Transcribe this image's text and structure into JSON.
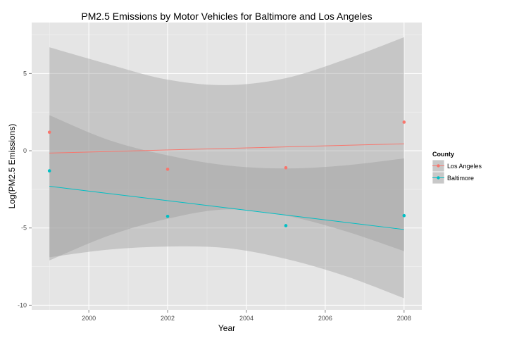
{
  "chart_data": {
    "type": "scatter",
    "title": "PM2.5 Emissions by Motor Vehicles for Baltimore and Los Angeles",
    "xlabel": "Year",
    "ylabel": "Log(PM2.5 Emissions)",
    "xlim": [
      1998.55,
      2008.45
    ],
    "ylim": [
      -10.3,
      8.3
    ],
    "x_ticks": [
      2000,
      2002,
      2004,
      2006,
      2008
    ],
    "y_ticks": [
      -10,
      -5,
      0,
      5
    ],
    "grid": true,
    "legend": {
      "title": "County",
      "position": "right"
    },
    "series": [
      {
        "name": "Los Angeles",
        "color": "#f8766d",
        "points": [
          {
            "x": 1999,
            "y": 1.2
          },
          {
            "x": 2002,
            "y": -1.2
          },
          {
            "x": 2005,
            "y": -1.1
          },
          {
            "x": 2008,
            "y": 1.85
          }
        ],
        "fit": {
          "x": [
            1999,
            2008
          ],
          "y": [
            -0.15,
            0.45
          ]
        },
        "ci_upper": [
          {
            "x": 1999,
            "y": 6.7
          },
          {
            "x": 2000.5,
            "y": 5.6
          },
          {
            "x": 2002,
            "y": 4.6
          },
          {
            "x": 2003.5,
            "y": 4.25
          },
          {
            "x": 2005,
            "y": 4.7
          },
          {
            "x": 2006.5,
            "y": 5.9
          },
          {
            "x": 2008,
            "y": 7.35
          }
        ],
        "ci_lower": [
          {
            "x": 1999,
            "y": -7.1
          },
          {
            "x": 2000.5,
            "y": -5.5
          },
          {
            "x": 2002,
            "y": -4.4
          },
          {
            "x": 2003.5,
            "y": -3.8
          },
          {
            "x": 2005,
            "y": -4.2
          },
          {
            "x": 2006.5,
            "y": -5.2
          },
          {
            "x": 2008,
            "y": -6.5
          }
        ]
      },
      {
        "name": "Baltimore",
        "color": "#00bfc4",
        "points": [
          {
            "x": 1999,
            "y": -1.3
          },
          {
            "x": 2002,
            "y": -4.25
          },
          {
            "x": 2005,
            "y": -4.85
          },
          {
            "x": 2008,
            "y": -4.2
          }
        ],
        "fit": {
          "x": [
            1999,
            2008
          ],
          "y": [
            -2.3,
            -5.1
          ]
        },
        "ci_upper": [
          {
            "x": 1999,
            "y": 2.3
          },
          {
            "x": 2000.5,
            "y": 0.7
          },
          {
            "x": 2002,
            "y": -0.3
          },
          {
            "x": 2003.5,
            "y": -0.95
          },
          {
            "x": 2005,
            "y": -1.15
          },
          {
            "x": 2006.5,
            "y": -0.95
          },
          {
            "x": 2008,
            "y": -0.5
          }
        ],
        "ci_lower": [
          {
            "x": 1999,
            "y": -6.9
          },
          {
            "x": 2000.5,
            "y": -6.4
          },
          {
            "x": 2002,
            "y": -6.2
          },
          {
            "x": 2003.5,
            "y": -6.3
          },
          {
            "x": 2005,
            "y": -7.0
          },
          {
            "x": 2006.5,
            "y": -8.1
          },
          {
            "x": 2008,
            "y": -9.55
          }
        ]
      }
    ]
  }
}
